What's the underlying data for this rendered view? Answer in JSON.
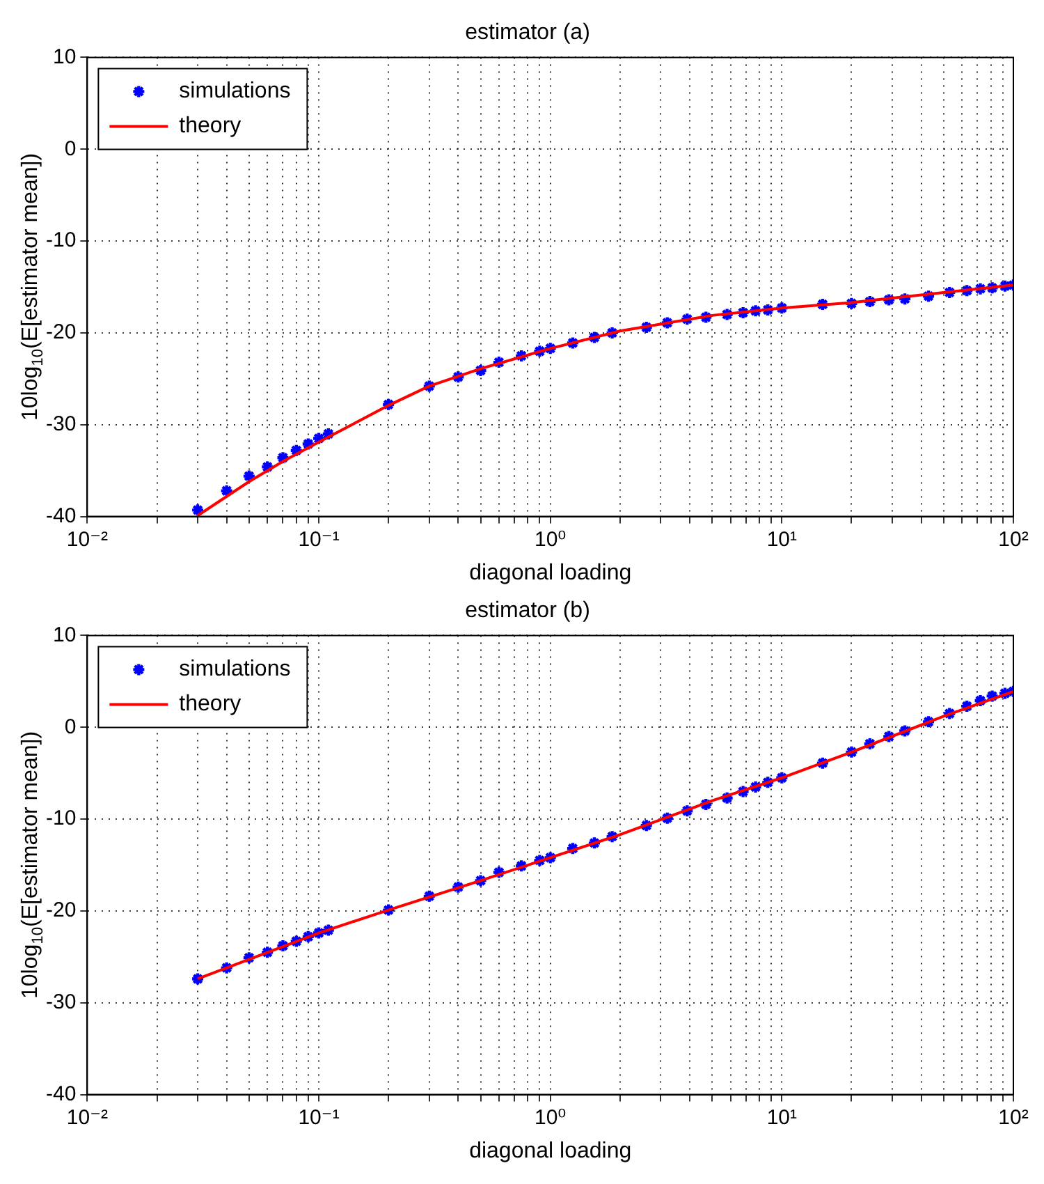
{
  "chart_data": [
    {
      "type": "scatter",
      "title": "estimator (a)",
      "xlabel": "diagonal loading",
      "ylabel": "10log$_{10}$(E[estimator mean])",
      "log": "x",
      "grid": true,
      "legend": "top left",
      "xlim": [
        0.01,
        100
      ],
      "ylim": [
        -40,
        10
      ],
      "xticks": [
        {
          "value": 0.01,
          "label": "10⁻²"
        },
        {
          "value": 0.02,
          "label": null
        },
        {
          "value": 0.03,
          "label": null
        },
        {
          "value": 0.04,
          "label": null
        },
        {
          "value": 0.05,
          "label": null
        },
        {
          "value": 0.06,
          "label": null
        },
        {
          "value": 0.07,
          "label": null
        },
        {
          "value": 0.08,
          "label": null
        },
        {
          "value": 0.09,
          "label": null
        },
        {
          "value": 0.1,
          "label": "10⁻¹"
        },
        {
          "value": 0.2,
          "label": null
        },
        {
          "value": 0.3,
          "label": null
        },
        {
          "value": 0.4,
          "label": null
        },
        {
          "value": 0.5,
          "label": null
        },
        {
          "value": 0.6,
          "label": null
        },
        {
          "value": 0.7,
          "label": null
        },
        {
          "value": 0.8,
          "label": null
        },
        {
          "value": 0.9,
          "label": null
        },
        {
          "value": 1,
          "label": "10⁰"
        },
        {
          "value": 2,
          "label": null
        },
        {
          "value": 3,
          "label": null
        },
        {
          "value": 4,
          "label": null
        },
        {
          "value": 5,
          "label": null
        },
        {
          "value": 6,
          "label": null
        },
        {
          "value": 7,
          "label": null
        },
        {
          "value": 8,
          "label": null
        },
        {
          "value": 9,
          "label": null
        },
        {
          "value": 10,
          "label": "10¹"
        },
        {
          "value": 20,
          "label": null
        },
        {
          "value": 30,
          "label": null
        },
        {
          "value": 40,
          "label": null
        },
        {
          "value": 50,
          "label": null
        },
        {
          "value": 60,
          "label": null
        },
        {
          "value": 70,
          "label": null
        },
        {
          "value": 80,
          "label": null
        },
        {
          "value": 90,
          "label": null
        },
        {
          "value": 100,
          "label": "10²"
        }
      ],
      "yticks": [
        -40,
        -30,
        -20,
        -10,
        0,
        10
      ],
      "series": [
        {
          "name": "simulations",
          "type": "scatter",
          "marker": "cross",
          "color": "#0000ff",
          "x": [
            0.03,
            0.04,
            0.05,
            0.06,
            0.07,
            0.08,
            0.09,
            0.1,
            0.11,
            0.2,
            0.3,
            0.4,
            0.5,
            0.6,
            0.75,
            0.9,
            1,
            1.25,
            1.55,
            1.85,
            2.6,
            3.2,
            3.9,
            4.7,
            5.8,
            6.8,
            7.7,
            8.7,
            10,
            15,
            20,
            24,
            29,
            34,
            43,
            53,
            63,
            72,
            81,
            92,
            100
          ],
          "values": [
            -39.3,
            -37.2,
            -35.6,
            -34.6,
            -33.6,
            -32.8,
            -32.1,
            -31.5,
            -31.0,
            -27.8,
            -25.8,
            -24.8,
            -24.1,
            -23.2,
            -22.5,
            -22.0,
            -21.7,
            -21.1,
            -20.5,
            -20.0,
            -19.4,
            -18.9,
            -18.5,
            -18.3,
            -18.0,
            -17.8,
            -17.6,
            -17.5,
            -17.3,
            -16.9,
            -16.8,
            -16.6,
            -16.4,
            -16.3,
            -16.0,
            -15.6,
            -15.4,
            -15.2,
            -15.1,
            -14.9,
            -14.8
          ]
        },
        {
          "name": "theory",
          "type": "line",
          "marker": "none",
          "line_style": "solid",
          "color": "#ff0000",
          "x": [
            0.03,
            0.05,
            0.07,
            0.1,
            0.2,
            0.3,
            0.5,
            1,
            2,
            5,
            10,
            20,
            50,
            100
          ],
          "values": [
            -39.9,
            -36.2,
            -34.0,
            -31.9,
            -27.9,
            -25.8,
            -23.9,
            -21.7,
            -19.8,
            -18.1,
            -17.3,
            -16.7,
            -15.6,
            -14.8
          ]
        }
      ]
    },
    {
      "type": "scatter",
      "title": "estimator (b)",
      "xlabel": "diagonal loading",
      "ylabel": "10log$_{10}$(E[estimator mean])",
      "log": "x",
      "grid": true,
      "legend": "top left",
      "xlim": [
        0.01,
        100
      ],
      "ylim": [
        -40,
        10
      ],
      "xticks": [
        {
          "value": 0.01,
          "label": "10⁻²"
        },
        {
          "value": 0.02,
          "label": null
        },
        {
          "value": 0.03,
          "label": null
        },
        {
          "value": 0.04,
          "label": null
        },
        {
          "value": 0.05,
          "label": null
        },
        {
          "value": 0.06,
          "label": null
        },
        {
          "value": 0.07,
          "label": null
        },
        {
          "value": 0.08,
          "label": null
        },
        {
          "value": 0.09,
          "label": null
        },
        {
          "value": 0.1,
          "label": "10⁻¹"
        },
        {
          "value": 0.2,
          "label": null
        },
        {
          "value": 0.3,
          "label": null
        },
        {
          "value": 0.4,
          "label": null
        },
        {
          "value": 0.5,
          "label": null
        },
        {
          "value": 0.6,
          "label": null
        },
        {
          "value": 0.7,
          "label": null
        },
        {
          "value": 0.8,
          "label": null
        },
        {
          "value": 0.9,
          "label": null
        },
        {
          "value": 1,
          "label": "10⁰"
        },
        {
          "value": 2,
          "label": null
        },
        {
          "value": 3,
          "label": null
        },
        {
          "value": 4,
          "label": null
        },
        {
          "value": 5,
          "label": null
        },
        {
          "value": 6,
          "label": null
        },
        {
          "value": 7,
          "label": null
        },
        {
          "value": 8,
          "label": null
        },
        {
          "value": 9,
          "label": null
        },
        {
          "value": 10,
          "label": "10¹"
        },
        {
          "value": 20,
          "label": null
        },
        {
          "value": 30,
          "label": null
        },
        {
          "value": 40,
          "label": null
        },
        {
          "value": 50,
          "label": null
        },
        {
          "value": 60,
          "label": null
        },
        {
          "value": 70,
          "label": null
        },
        {
          "value": 80,
          "label": null
        },
        {
          "value": 90,
          "label": null
        },
        {
          "value": 100,
          "label": "10²"
        }
      ],
      "yticks": [
        -40,
        -30,
        -20,
        -10,
        0,
        10
      ],
      "series": [
        {
          "name": "simulations",
          "type": "scatter",
          "marker": "cross",
          "color": "#0000ff",
          "x": [
            0.03,
            0.04,
            0.05,
            0.06,
            0.07,
            0.08,
            0.09,
            0.1,
            0.11,
            0.2,
            0.3,
            0.4,
            0.5,
            0.6,
            0.75,
            0.9,
            1,
            1.25,
            1.55,
            1.85,
            2.6,
            3.2,
            3.9,
            4.7,
            5.8,
            6.8,
            7.7,
            8.7,
            10,
            15,
            20,
            24,
            29,
            34,
            43,
            53,
            63,
            72,
            81,
            92,
            100
          ],
          "values": [
            -27.4,
            -26.2,
            -25.1,
            -24.5,
            -23.8,
            -23.3,
            -22.8,
            -22.4,
            -22.1,
            -19.9,
            -18.4,
            -17.4,
            -16.7,
            -15.8,
            -15.1,
            -14.5,
            -14.2,
            -13.2,
            -12.6,
            -11.9,
            -10.7,
            -9.9,
            -9.1,
            -8.4,
            -7.7,
            -7.0,
            -6.5,
            -6.0,
            -5.5,
            -3.9,
            -2.7,
            -1.8,
            -1.0,
            -0.4,
            0.6,
            1.5,
            2.3,
            2.9,
            3.4,
            3.7,
            3.9
          ]
        },
        {
          "name": "theory",
          "type": "line",
          "marker": "none",
          "line_style": "solid",
          "color": "#ff0000",
          "x": [
            0.03,
            0.1,
            0.2,
            0.5,
            1,
            2,
            5,
            10,
            20,
            50,
            100
          ],
          "values": [
            -27.4,
            -22.4,
            -19.9,
            -16.7,
            -14.2,
            -11.7,
            -8.0,
            -5.5,
            -2.7,
            1.2,
            3.9
          ]
        }
      ]
    }
  ]
}
